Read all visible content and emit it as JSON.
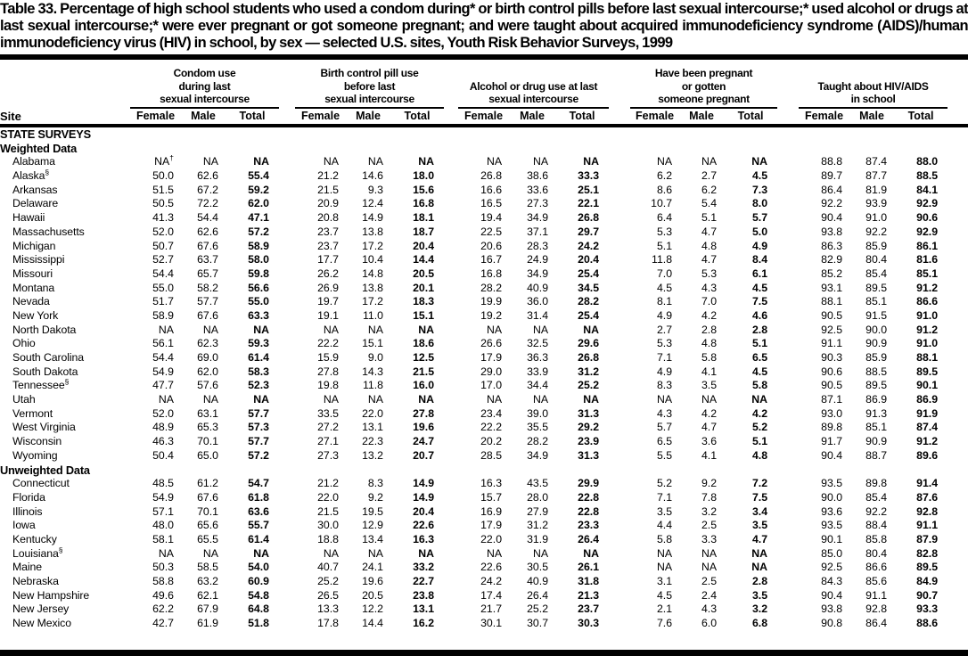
{
  "title": "Table 33. Percentage of high school students who used a condom during* or birth control pills before last sexual intercourse;* used alcohol or drugs at last sexual intercourse;* were ever pregnant or got someone pregnant; and were taught about acquired immunodeficiency syndrome (AIDS)/human immunodeficiency virus (HIV) in school, by sex — selected U.S. sites, Youth Risk Behavior Surveys, 1999",
  "table": {
    "site_header": "Site",
    "groups": [
      {
        "label": "Condom use\nduring last\nsexual intercourse"
      },
      {
        "label": "Birth control pill use\nbefore last\nsexual intercourse"
      },
      {
        "label": "Alcohol or drug use at last\nsexual intercourse"
      },
      {
        "label": "Have been pregnant\nor gotten\nsomeone pregnant"
      },
      {
        "label": "Taught about HIV/AIDS\nin school"
      }
    ],
    "sub_headers": [
      "Female",
      "Male",
      "Total"
    ],
    "sections": [
      {
        "headings": [
          "STATE SURVEYS",
          "Weighted Data"
        ],
        "rows": [
          {
            "site": "Alabama",
            "values": [
              "NA†",
              "NA",
              "NA",
              "NA",
              "NA",
              "NA",
              "NA",
              "NA",
              "NA",
              "NA",
              "NA",
              "NA",
              "88.8",
              "87.4",
              "88.0"
            ]
          },
          {
            "site": "Alaska§",
            "values": [
              "50.0",
              "62.6",
              "55.4",
              "21.2",
              "14.6",
              "18.0",
              "26.8",
              "38.6",
              "33.3",
              "6.2",
              "2.7",
              "4.5",
              "89.7",
              "87.7",
              "88.5"
            ]
          },
          {
            "site": "Arkansas",
            "values": [
              "51.5",
              "67.2",
              "59.2",
              "21.5",
              "9.3",
              "15.6",
              "16.6",
              "33.6",
              "25.1",
              "8.6",
              "6.2",
              "7.3",
              "86.4",
              "81.9",
              "84.1"
            ]
          },
          {
            "site": "Delaware",
            "values": [
              "50.5",
              "72.2",
              "62.0",
              "20.9",
              "12.4",
              "16.8",
              "16.5",
              "27.3",
              "22.1",
              "10.7",
              "5.4",
              "8.0",
              "92.2",
              "93.9",
              "92.9"
            ]
          },
          {
            "site": "Hawaii",
            "values": [
              "41.3",
              "54.4",
              "47.1",
              "20.8",
              "14.9",
              "18.1",
              "19.4",
              "34.9",
              "26.8",
              "6.4",
              "5.1",
              "5.7",
              "90.4",
              "91.0",
              "90.6"
            ]
          },
          {
            "site": "Massachusetts",
            "values": [
              "52.0",
              "62.6",
              "57.2",
              "23.7",
              "13.8",
              "18.7",
              "22.5",
              "37.1",
              "29.7",
              "5.3",
              "4.7",
              "5.0",
              "93.8",
              "92.2",
              "92.9"
            ]
          },
          {
            "site": "Michigan",
            "values": [
              "50.7",
              "67.6",
              "58.9",
              "23.7",
              "17.2",
              "20.4",
              "20.6",
              "28.3",
              "24.2",
              "5.1",
              "4.8",
              "4.9",
              "86.3",
              "85.9",
              "86.1"
            ]
          },
          {
            "site": "Mississippi",
            "values": [
              "52.7",
              "63.7",
              "58.0",
              "17.7",
              "10.4",
              "14.4",
              "16.7",
              "24.9",
              "20.4",
              "11.8",
              "4.7",
              "8.4",
              "82.9",
              "80.4",
              "81.6"
            ]
          },
          {
            "site": "Missouri",
            "values": [
              "54.4",
              "65.7",
              "59.8",
              "26.2",
              "14.8",
              "20.5",
              "16.8",
              "34.9",
              "25.4",
              "7.0",
              "5.3",
              "6.1",
              "85.2",
              "85.4",
              "85.1"
            ]
          },
          {
            "site": "Montana",
            "values": [
              "55.0",
              "58.2",
              "56.6",
              "26.9",
              "13.8",
              "20.1",
              "28.2",
              "40.9",
              "34.5",
              "4.5",
              "4.3",
              "4.5",
              "93.1",
              "89.5",
              "91.2"
            ]
          },
          {
            "site": "Nevada",
            "values": [
              "51.7",
              "57.7",
              "55.0",
              "19.7",
              "17.2",
              "18.3",
              "19.9",
              "36.0",
              "28.2",
              "8.1",
              "7.0",
              "7.5",
              "88.1",
              "85.1",
              "86.6"
            ]
          },
          {
            "site": "New York",
            "values": [
              "58.9",
              "67.6",
              "63.3",
              "19.1",
              "11.0",
              "15.1",
              "19.2",
              "31.4",
              "25.4",
              "4.9",
              "4.2",
              "4.6",
              "90.5",
              "91.5",
              "91.0"
            ]
          },
          {
            "site": "North Dakota",
            "values": [
              "NA",
              "NA",
              "NA",
              "NA",
              "NA",
              "NA",
              "NA",
              "NA",
              "NA",
              "2.7",
              "2.8",
              "2.8",
              "92.5",
              "90.0",
              "91.2"
            ]
          },
          {
            "site": "Ohio",
            "values": [
              "56.1",
              "62.3",
              "59.3",
              "22.2",
              "15.1",
              "18.6",
              "26.6",
              "32.5",
              "29.6",
              "5.3",
              "4.8",
              "5.1",
              "91.1",
              "90.9",
              "91.0"
            ]
          },
          {
            "site": "South Carolina",
            "values": [
              "54.4",
              "69.0",
              "61.4",
              "15.9",
              "9.0",
              "12.5",
              "17.9",
              "36.3",
              "26.8",
              "7.1",
              "5.8",
              "6.5",
              "90.3",
              "85.9",
              "88.1"
            ]
          },
          {
            "site": "South Dakota",
            "values": [
              "54.9",
              "62.0",
              "58.3",
              "27.8",
              "14.3",
              "21.5",
              "29.0",
              "33.9",
              "31.2",
              "4.9",
              "4.1",
              "4.5",
              "90.6",
              "88.5",
              "89.5"
            ]
          },
          {
            "site": "Tennessee§",
            "values": [
              "47.7",
              "57.6",
              "52.3",
              "19.8",
              "11.8",
              "16.0",
              "17.0",
              "34.4",
              "25.2",
              "8.3",
              "3.5",
              "5.8",
              "90.5",
              "89.5",
              "90.1"
            ]
          },
          {
            "site": "Utah",
            "values": [
              "NA",
              "NA",
              "NA",
              "NA",
              "NA",
              "NA",
              "NA",
              "NA",
              "NA",
              "NA",
              "NA",
              "NA",
              "87.1",
              "86.9",
              "86.9"
            ]
          },
          {
            "site": "Vermont",
            "values": [
              "52.0",
              "63.1",
              "57.7",
              "33.5",
              "22.0",
              "27.8",
              "23.4",
              "39.0",
              "31.3",
              "4.3",
              "4.2",
              "4.2",
              "93.0",
              "91.3",
              "91.9"
            ]
          },
          {
            "site": "West Virginia",
            "values": [
              "48.9",
              "65.3",
              "57.3",
              "27.2",
              "13.1",
              "19.6",
              "22.2",
              "35.5",
              "29.2",
              "5.7",
              "4.7",
              "5.2",
              "89.8",
              "85.1",
              "87.4"
            ]
          },
          {
            "site": "Wisconsin",
            "values": [
              "46.3",
              "70.1",
              "57.7",
              "27.1",
              "22.3",
              "24.7",
              "20.2",
              "28.2",
              "23.9",
              "6.5",
              "3.6",
              "5.1",
              "91.7",
              "90.9",
              "91.2"
            ]
          },
          {
            "site": "Wyoming",
            "values": [
              "50.4",
              "65.0",
              "57.2",
              "27.3",
              "13.2",
              "20.7",
              "28.5",
              "34.9",
              "31.3",
              "5.5",
              "4.1",
              "4.8",
              "90.4",
              "88.7",
              "89.6"
            ]
          }
        ]
      },
      {
        "headings": [
          "Unweighted Data"
        ],
        "rows": [
          {
            "site": "Connecticut",
            "values": [
              "48.5",
              "61.2",
              "54.7",
              "21.2",
              "8.3",
              "14.9",
              "16.3",
              "43.5",
              "29.9",
              "5.2",
              "9.2",
              "7.2",
              "93.5",
              "89.8",
              "91.4"
            ]
          },
          {
            "site": "Florida",
            "values": [
              "54.9",
              "67.6",
              "61.8",
              "22.0",
              "9.2",
              "14.9",
              "15.7",
              "28.0",
              "22.8",
              "7.1",
              "7.8",
              "7.5",
              "90.0",
              "85.4",
              "87.6"
            ]
          },
          {
            "site": "Illinois",
            "values": [
              "57.1",
              "70.1",
              "63.6",
              "21.5",
              "19.5",
              "20.4",
              "16.9",
              "27.9",
              "22.8",
              "3.5",
              "3.2",
              "3.4",
              "93.6",
              "92.2",
              "92.8"
            ]
          },
          {
            "site": "Iowa",
            "values": [
              "48.0",
              "65.6",
              "55.7",
              "30.0",
              "12.9",
              "22.6",
              "17.9",
              "31.2",
              "23.3",
              "4.4",
              "2.5",
              "3.5",
              "93.5",
              "88.4",
              "91.1"
            ]
          },
          {
            "site": "Kentucky",
            "values": [
              "58.1",
              "65.5",
              "61.4",
              "18.8",
              "13.4",
              "16.3",
              "22.0",
              "31.9",
              "26.4",
              "5.8",
              "3.3",
              "4.7",
              "90.1",
              "85.8",
              "87.9"
            ]
          },
          {
            "site": "Louisiana§",
            "values": [
              "NA",
              "NA",
              "NA",
              "NA",
              "NA",
              "NA",
              "NA",
              "NA",
              "NA",
              "NA",
              "NA",
              "NA",
              "85.0",
              "80.4",
              "82.8"
            ]
          },
          {
            "site": "Maine",
            "values": [
              "50.3",
              "58.5",
              "54.0",
              "40.7",
              "24.1",
              "33.2",
              "22.6",
              "30.5",
              "26.1",
              "NA",
              "NA",
              "NA",
              "92.5",
              "86.6",
              "89.5"
            ]
          },
          {
            "site": "Nebraska",
            "values": [
              "58.8",
              "63.2",
              "60.9",
              "25.2",
              "19.6",
              "22.7",
              "24.2",
              "40.9",
              "31.8",
              "3.1",
              "2.5",
              "2.8",
              "84.3",
              "85.6",
              "84.9"
            ]
          },
          {
            "site": "New Hampshire",
            "values": [
              "49.6",
              "62.1",
              "54.8",
              "26.5",
              "20.5",
              "23.8",
              "17.4",
              "26.4",
              "21.3",
              "4.5",
              "2.4",
              "3.5",
              "90.4",
              "91.1",
              "90.7"
            ]
          },
          {
            "site": "New Jersey",
            "values": [
              "62.2",
              "67.9",
              "64.8",
              "13.3",
              "12.2",
              "13.1",
              "21.7",
              "25.2",
              "23.7",
              "2.1",
              "4.3",
              "3.2",
              "93.8",
              "92.8",
              "93.3"
            ]
          },
          {
            "site": "New Mexico",
            "values": [
              "42.7",
              "61.9",
              "51.8",
              "17.8",
              "14.4",
              "16.2",
              "30.1",
              "30.7",
              "30.3",
              "7.6",
              "6.0",
              "6.8",
              "90.8",
              "86.4",
              "88.6"
            ]
          }
        ]
      }
    ]
  }
}
